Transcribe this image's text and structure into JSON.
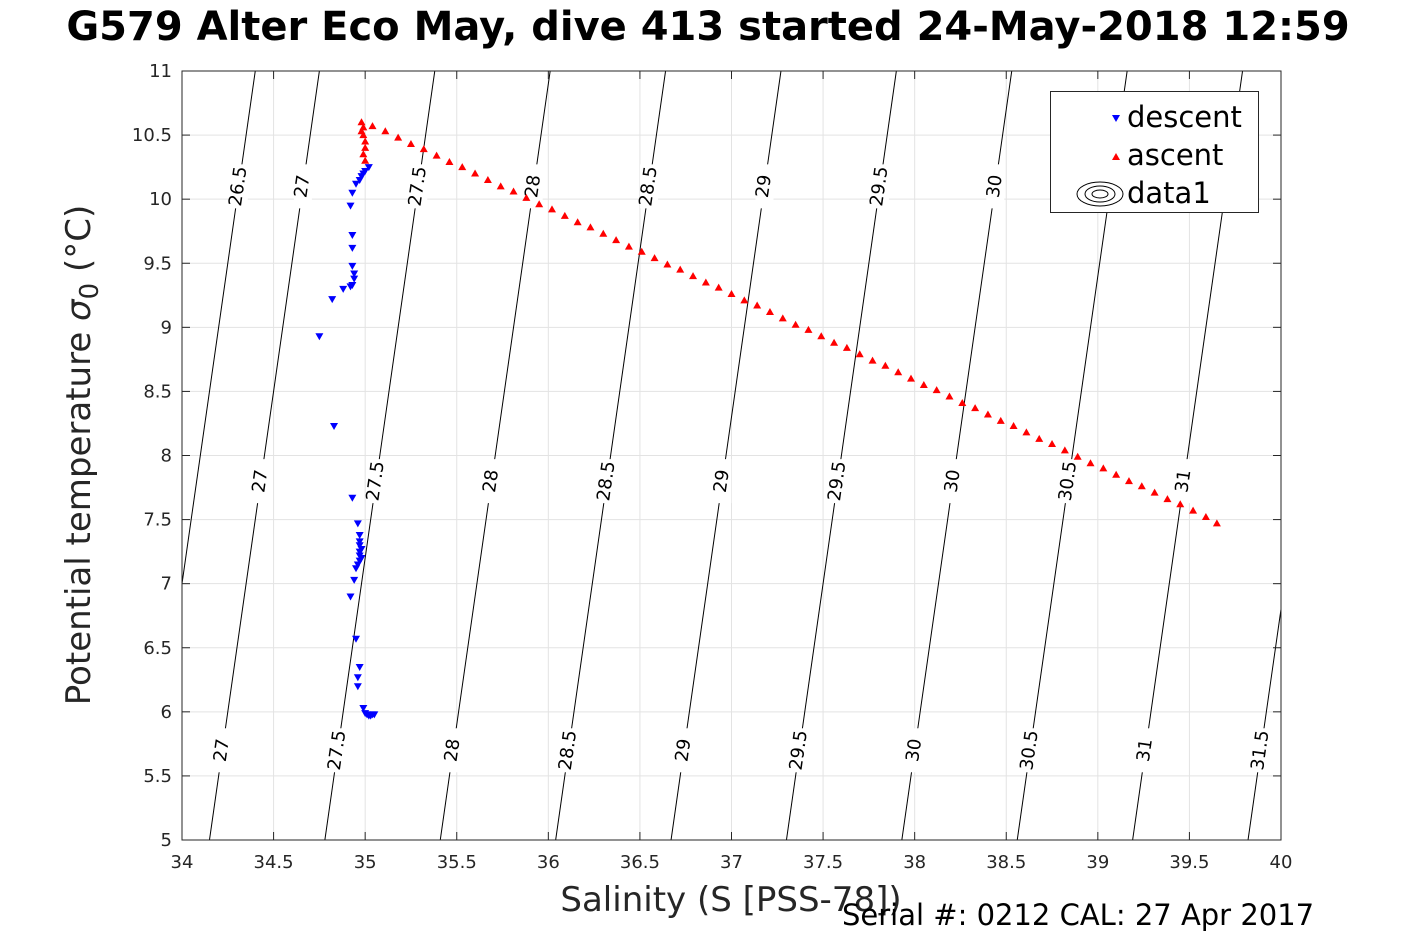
{
  "title": "G579 Alter Eco May, dive 413 started 24-May-2018 12:59",
  "footer": "Serial #: 0212  CAL: 27 Apr 2017",
  "chart_data": {
    "type": "scatter",
    "xlabel": "Salinity (S [PSS-78])",
    "ylabel_main": "Potential temperature ",
    "ylabel_sigma": "σ",
    "ylabel_sub": "0",
    "ylabel_unit": " (°C)",
    "xlim": [
      34,
      40
    ],
    "ylim": [
      5,
      11
    ],
    "xticks": [
      "34",
      "34.5",
      "35",
      "35.5",
      "36",
      "36.5",
      "37",
      "37.5",
      "38",
      "38.5",
      "39",
      "39.5",
      "40"
    ],
    "yticks": [
      "5",
      "5.5",
      "6",
      "6.5",
      "7",
      "7.5",
      "8",
      "8.5",
      "9",
      "9.5",
      "10",
      "10.5",
      "11"
    ],
    "grid": true,
    "legend_position": "top-right",
    "legend": [
      "descent",
      "ascent",
      "data1"
    ],
    "series": [
      {
        "name": "descent",
        "marker": "triangle-down",
        "color": "#0000ff",
        "points": [
          [
            35.02,
            10.25
          ],
          [
            35.0,
            10.22
          ],
          [
            34.99,
            10.2
          ],
          [
            34.98,
            10.18
          ],
          [
            34.97,
            10.15
          ],
          [
            34.95,
            10.12
          ],
          [
            34.93,
            10.05
          ],
          [
            34.92,
            9.95
          ],
          [
            34.93,
            9.72
          ],
          [
            34.93,
            9.62
          ],
          [
            34.93,
            9.48
          ],
          [
            34.94,
            9.42
          ],
          [
            34.94,
            9.38
          ],
          [
            34.93,
            9.33
          ],
          [
            34.92,
            9.32
          ],
          [
            34.88,
            9.3
          ],
          [
            34.82,
            9.22
          ],
          [
            34.75,
            8.93
          ],
          [
            34.83,
            8.23
          ],
          [
            34.93,
            7.67
          ],
          [
            34.96,
            7.47
          ],
          [
            34.97,
            7.38
          ],
          [
            34.97,
            7.33
          ],
          [
            34.97,
            7.3
          ],
          [
            34.98,
            7.27
          ],
          [
            34.97,
            7.25
          ],
          [
            34.97,
            7.22
          ],
          [
            34.98,
            7.2
          ],
          [
            34.97,
            7.18
          ],
          [
            34.96,
            7.15
          ],
          [
            34.95,
            7.12
          ],
          [
            34.94,
            7.03
          ],
          [
            34.92,
            6.9
          ],
          [
            34.95,
            6.57
          ],
          [
            34.97,
            6.35
          ],
          [
            34.96,
            6.27
          ],
          [
            34.96,
            6.2
          ],
          [
            34.99,
            6.03
          ],
          [
            35.0,
            5.99
          ],
          [
            35.01,
            5.98
          ],
          [
            35.02,
            5.97
          ],
          [
            35.03,
            5.97
          ],
          [
            35.04,
            5.98
          ],
          [
            35.05,
            5.98
          ]
        ]
      },
      {
        "name": "ascent",
        "marker": "triangle-up",
        "color": "#ff0000",
        "points": [
          [
            34.98,
            10.6
          ],
          [
            34.99,
            10.56
          ],
          [
            34.98,
            10.53
          ],
          [
            34.99,
            10.5
          ],
          [
            35.0,
            10.45
          ],
          [
            35.0,
            10.4
          ],
          [
            34.99,
            10.35
          ],
          [
            35.0,
            10.3
          ],
          [
            35.04,
            10.57
          ],
          [
            35.11,
            10.53
          ],
          [
            35.18,
            10.48
          ],
          [
            35.25,
            10.43
          ],
          [
            35.32,
            10.39
          ],
          [
            35.39,
            10.34
          ],
          [
            35.46,
            10.29
          ],
          [
            35.53,
            10.25
          ],
          [
            35.6,
            10.2
          ],
          [
            35.67,
            10.15
          ],
          [
            35.74,
            10.1
          ],
          [
            35.81,
            10.06
          ],
          [
            35.88,
            10.01
          ],
          [
            35.95,
            9.96
          ],
          [
            36.02,
            9.92
          ],
          [
            36.09,
            9.87
          ],
          [
            36.16,
            9.82
          ],
          [
            36.23,
            9.78
          ],
          [
            36.3,
            9.73
          ],
          [
            36.37,
            9.68
          ],
          [
            36.44,
            9.63
          ],
          [
            36.51,
            9.59
          ],
          [
            36.58,
            9.54
          ],
          [
            36.65,
            9.49
          ],
          [
            36.72,
            9.45
          ],
          [
            36.79,
            9.4
          ],
          [
            36.86,
            9.35
          ],
          [
            36.93,
            9.31
          ],
          [
            37.0,
            9.26
          ],
          [
            37.07,
            9.21
          ],
          [
            37.14,
            9.17
          ],
          [
            37.21,
            9.12
          ],
          [
            37.28,
            9.07
          ],
          [
            37.35,
            9.02
          ],
          [
            37.42,
            8.98
          ],
          [
            37.49,
            8.93
          ],
          [
            37.56,
            8.88
          ],
          [
            37.63,
            8.84
          ],
          [
            37.7,
            8.79
          ],
          [
            37.77,
            8.74
          ],
          [
            37.84,
            8.7
          ],
          [
            37.91,
            8.65
          ],
          [
            37.98,
            8.6
          ],
          [
            38.05,
            8.55
          ],
          [
            38.12,
            8.51
          ],
          [
            38.19,
            8.46
          ],
          [
            38.26,
            8.41
          ],
          [
            38.33,
            8.37
          ],
          [
            38.4,
            8.32
          ],
          [
            38.47,
            8.27
          ],
          [
            38.54,
            8.23
          ],
          [
            38.61,
            8.18
          ],
          [
            38.68,
            8.13
          ],
          [
            38.75,
            8.09
          ],
          [
            38.82,
            8.04
          ],
          [
            38.89,
            7.99
          ],
          [
            38.96,
            7.94
          ],
          [
            39.03,
            7.9
          ],
          [
            39.1,
            7.85
          ],
          [
            39.17,
            7.8
          ],
          [
            39.24,
            7.76
          ],
          [
            39.31,
            7.71
          ],
          [
            39.38,
            7.66
          ],
          [
            39.45,
            7.62
          ],
          [
            39.52,
            7.57
          ],
          [
            39.59,
            7.52
          ],
          [
            39.65,
            7.47
          ]
        ]
      }
    ],
    "contours": {
      "label_prefix_note": "",
      "lines": [
        {
          "value": "26.5",
          "x0": 33.8,
          "slope": 0.1
        },
        {
          "value": "27",
          "x0": 34.15,
          "slope": 0.1
        },
        {
          "value": "27.5",
          "x0": 34.78,
          "slope": 0.1
        },
        {
          "value": "28",
          "x0": 35.41,
          "slope": 0.1
        },
        {
          "value": "28.5",
          "x0": 36.04,
          "slope": 0.1
        },
        {
          "value": "29",
          "x0": 36.67,
          "slope": 0.1
        },
        {
          "value": "29.5",
          "x0": 37.3,
          "slope": 0.1
        },
        {
          "value": "30",
          "x0": 37.93,
          "slope": 0.1
        },
        {
          "value": "30.5",
          "x0": 38.56,
          "slope": 0.1
        },
        {
          "value": "31",
          "x0": 39.19,
          "slope": 0.1
        },
        {
          "value": "31.5",
          "x0": 39.82,
          "slope": 0.1
        }
      ]
    }
  }
}
